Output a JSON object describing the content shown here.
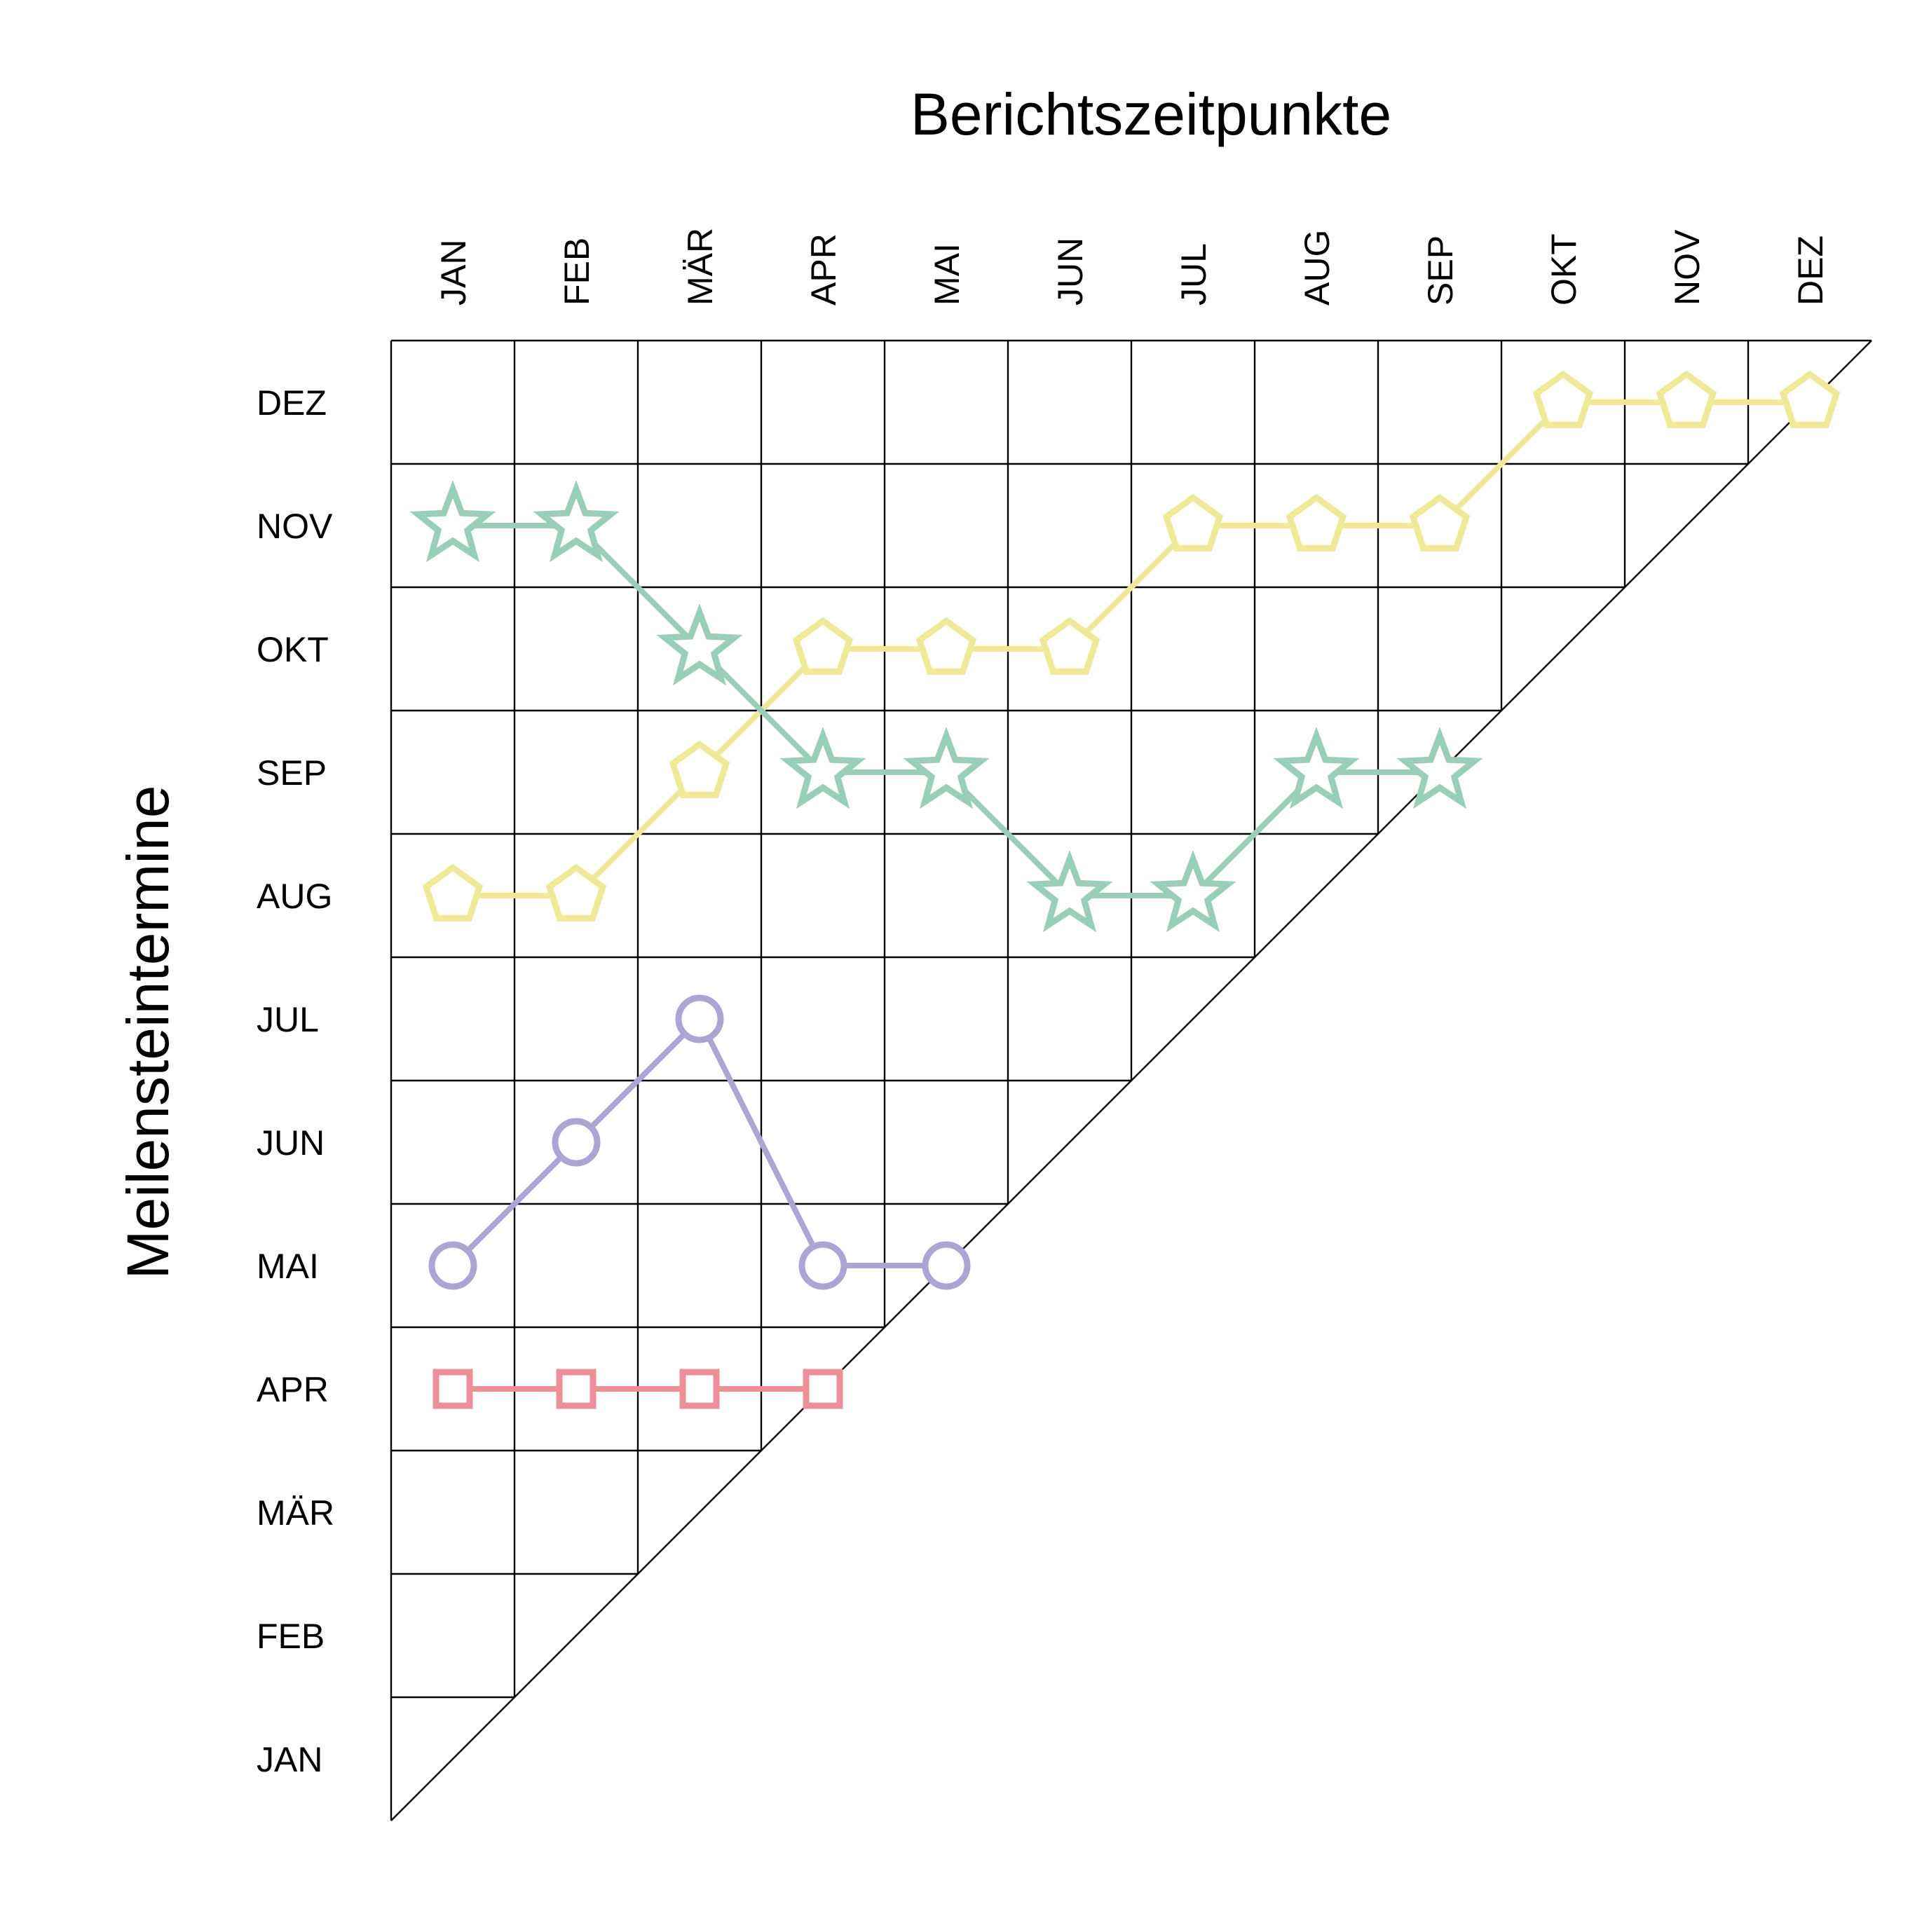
{
  "chart_data": {
    "type": "line",
    "title": "Berichtszeitpunkte",
    "xlabel": "Berichtszeitpunkte",
    "ylabel": "Meilensteintermine",
    "x_categories": [
      "JAN",
      "FEB",
      "MÄR",
      "APR",
      "MAI",
      "JUN",
      "JUL",
      "AUG",
      "SEP",
      "OKT",
      "NOV",
      "DEZ"
    ],
    "y_categories": [
      "JAN",
      "FEB",
      "MÄR",
      "APR",
      "MAI",
      "JUN",
      "JUL",
      "AUG",
      "SEP",
      "OKT",
      "NOV",
      "DEZ"
    ],
    "x_axis_position": "top",
    "y_axis_order": "DEZ at top, JAN at bottom",
    "grid": true,
    "grid_shape": "upper-left triangle with diagonal",
    "legend": "none",
    "series": [
      {
        "marker": "square",
        "color": "#ee8f97",
        "x": [
          "JAN",
          "FEB",
          "MÄR",
          "APR"
        ],
        "y": [
          "APR",
          "APR",
          "APR",
          "APR"
        ]
      },
      {
        "marker": "circle",
        "color": "#aaa5d2",
        "x": [
          "JAN",
          "FEB",
          "MÄR",
          "APR",
          "MAI"
        ],
        "y": [
          "MAI",
          "JUN",
          "JUL",
          "MAI",
          "MAI"
        ]
      },
      {
        "marker": "pentagon",
        "color": "#efea97",
        "x": [
          "JAN",
          "FEB",
          "MÄR",
          "APR",
          "MAI",
          "JUN",
          "JUL",
          "AUG",
          "SEP",
          "OKT",
          "NOV",
          "DEZ"
        ],
        "y": [
          "AUG",
          "AUG",
          "SEP",
          "OKT",
          "OKT",
          "OKT",
          "NOV",
          "NOV",
          "NOV",
          "DEZ",
          "DEZ",
          "DEZ"
        ]
      },
      {
        "marker": "star",
        "color": "#99ceb9",
        "x": [
          "JAN",
          "FEB",
          "MÄR",
          "APR",
          "MAI",
          "JUN",
          "JUL",
          "AUG",
          "SEP"
        ],
        "y": [
          "NOV",
          "NOV",
          "OKT",
          "SEP",
          "SEP",
          "AUG",
          "AUG",
          "SEP",
          "SEP"
        ]
      }
    ]
  }
}
